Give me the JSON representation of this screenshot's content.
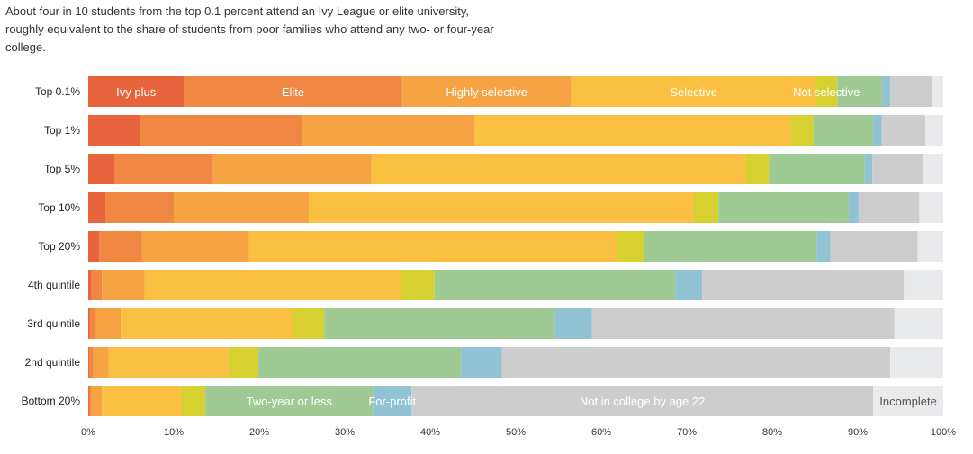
{
  "intro": "About four in 10 students from the top 0.1 percent attend an Ivy League or elite university, roughly equivalent to the share of students from poor families who attend any two- or four-year college.",
  "chart_data": {
    "type": "bar",
    "orientation": "horizontal",
    "stacked": true,
    "x_tick_labels": [
      "0%",
      "10%",
      "20%",
      "30%",
      "40%",
      "50%",
      "60%",
      "70%",
      "80%",
      "90%",
      "100%"
    ],
    "xlim": [
      0,
      100
    ],
    "categories": [
      "Top 0.1%",
      "Top 1%",
      "Top 5%",
      "Top 10%",
      "Top 20%",
      "4th quintile",
      "3rd quintile",
      "2nd quintile",
      "Bottom 20%"
    ],
    "series": [
      {
        "name": "Ivy plus",
        "color": "#e8643c",
        "values": [
          11.2,
          6.0,
          3.1,
          2.0,
          1.3,
          0.4,
          0.2,
          0.1,
          0.1
        ]
      },
      {
        "name": "Elite",
        "color": "#f08742",
        "values": [
          25.5,
          19.0,
          11.5,
          8.0,
          5.0,
          1.2,
          0.7,
          0.5,
          0.3
        ]
      },
      {
        "name": "Highly selective",
        "color": "#f6a443",
        "values": [
          19.8,
          20.2,
          18.5,
          15.8,
          12.5,
          5.0,
          2.9,
          1.8,
          1.2
        ]
      },
      {
        "name": "Selective",
        "color": "#fbbf42",
        "values": [
          28.6,
          37.0,
          43.8,
          45.0,
          43.0,
          30.0,
          20.2,
          14.0,
          9.3
        ]
      },
      {
        "name": "Not selective",
        "color": "#d6d030",
        "values": [
          2.5,
          2.6,
          2.7,
          2.9,
          3.2,
          3.9,
          3.6,
          3.5,
          2.8
        ]
      },
      {
        "name": "Two-year or less",
        "color": "#9fca94",
        "values": [
          5.3,
          7.0,
          11.2,
          15.2,
          20.2,
          28.2,
          27.0,
          23.7,
          19.6
        ]
      },
      {
        "name": "For-profit",
        "color": "#92c3d4",
        "values": [
          0.9,
          1.0,
          0.9,
          1.2,
          1.6,
          3.1,
          4.3,
          4.8,
          4.5
        ]
      },
      {
        "name": "Not in college by age 22",
        "color": "#cdcdcd",
        "values": [
          4.9,
          5.1,
          6.0,
          7.1,
          10.2,
          23.6,
          35.4,
          45.4,
          54.0
        ]
      },
      {
        "name": "Incomplete",
        "color": "#e9eaeb",
        "values": [
          1.3,
          2.1,
          2.3,
          2.8,
          3.0,
          4.6,
          5.7,
          6.2,
          8.2
        ]
      }
    ],
    "segment_labels": [
      {
        "text": "Ivy plus",
        "row": 0,
        "series": 0
      },
      {
        "text": "Elite",
        "row": 0,
        "series": 1
      },
      {
        "text": "Highly selective",
        "row": 0,
        "series": 2
      },
      {
        "text": "Selective",
        "row": 0,
        "series": 3
      },
      {
        "text": "Not selective",
        "row": 0,
        "series": 4
      },
      {
        "text": "Two-year or less",
        "row": 8,
        "series": 5
      },
      {
        "text": "For-profit",
        "row": 8,
        "series": 6
      },
      {
        "text": "Not in college by age 22",
        "row": 8,
        "series": 7
      },
      {
        "text": "Incomplete",
        "row": 8,
        "series": 8
      }
    ]
  }
}
